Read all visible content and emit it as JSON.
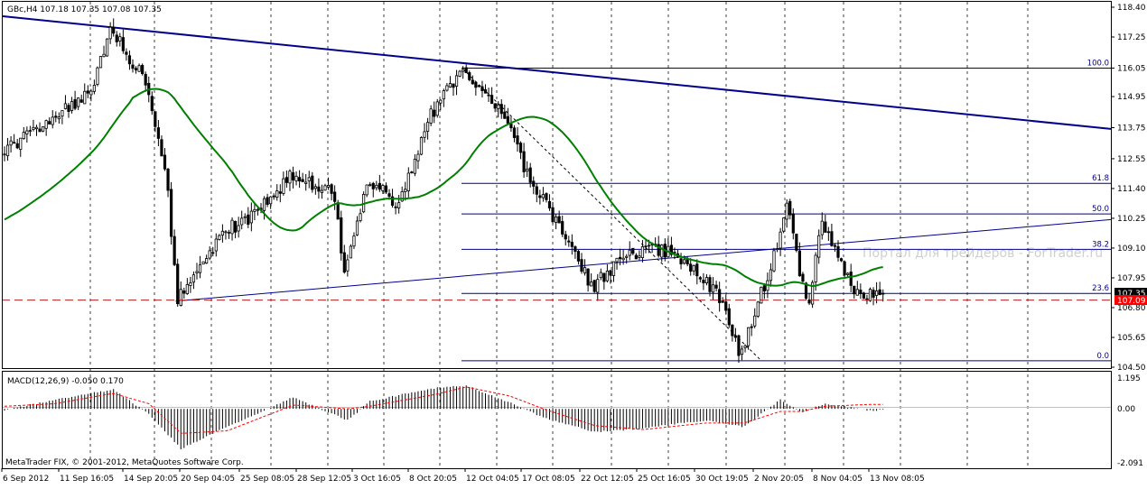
{
  "header": {
    "price_title": "GBc,H4  107.18 107.35 107.08 107.35",
    "macd_title": "MACD(12,26,9) -0.050 0.170",
    "copyright": "MetaTrader FIX, © 2001-2012, MetaQuotes Software Corp.",
    "watermark": "Портал для трейдеров - ForTrader.ru"
  },
  "colors": {
    "candle": "#000000",
    "ma": "#008000",
    "trend_line": "#00008b",
    "fibo": "#000080",
    "ask_line": "#b22222",
    "grid": "#000000",
    "macd_hist": "#000000",
    "macd_signal": "#ff0000",
    "price_label_bg": "#000000",
    "ask_label_bg": "#ff0000"
  },
  "chart_data": [
    {
      "type": "candlestick",
      "panel": "price",
      "ylim": [
        104.5,
        118.4
      ],
      "y_ticks": [
        "118.40",
        "117.25",
        "116.05",
        "114.95",
        "113.75",
        "112.55",
        "111.40",
        "110.25",
        "109.10",
        "107.95",
        "106.80",
        "105.65",
        "104.50"
      ],
      "x_ticks": [
        "6 Sep 2012",
        "11 Sep 16:05",
        "14 Sep 20:05",
        "20 Sep 04:05",
        "25 Sep 08:05",
        "28 Sep 12:05",
        "3 Oct 16:05",
        "8 Oct 20:05",
        "12 Oct 04:05",
        "17 Oct 08:05",
        "22 Oct 12:05",
        "25 Oct 16:05",
        "30 Oct 19:05",
        "2 Nov 20:05",
        "8 Nov 04:05",
        "13 Nov 08:05"
      ],
      "current_bid": "107.35",
      "current_ask": "107.09",
      "anchors": {
        "x": [
          "6 Sep",
          "9 Sep",
          "12 Sep",
          "13 Sep",
          "14 Sep",
          "17 Sep",
          "19 Sep",
          "20 Sep",
          "24 Sep",
          "26 Sep",
          "28 Sep",
          "2 Oct",
          "3 Oct",
          "5 Oct",
          "8 Oct",
          "10 Oct",
          "11 Oct",
          "12 Oct",
          "16 Oct",
          "18 Oct",
          "22 Oct",
          "23 Oct",
          "25 Oct",
          "29 Oct",
          "31 Oct",
          "1 Nov",
          "2 Nov",
          "5 Nov",
          "6 Nov",
          "7 Nov",
          "8 Nov",
          "9 Nov",
          "12 Nov",
          "13 Nov"
        ],
        "y": [
          112.8,
          113.5,
          114.6,
          115.0,
          117.6,
          115.5,
          111.5,
          107.1,
          109.8,
          110.3,
          111.9,
          111.3,
          108.0,
          111.7,
          110.8,
          114.2,
          115.2,
          116.0,
          114.0,
          111.8,
          109.0,
          107.6,
          108.9,
          109.0,
          107.9,
          107.1,
          104.9,
          109.2,
          111.2,
          108.0,
          107.0,
          110.2,
          107.5,
          107.35
        ]
      },
      "fibonacci_levels": [
        {
          "label": "100.0",
          "value": 116.05
        },
        {
          "label": "61.8",
          "value": 111.6
        },
        {
          "label": "50.0",
          "value": 110.42
        },
        {
          "label": "38.2",
          "value": 109.05
        },
        {
          "label": "23.6",
          "value": 107.35
        },
        {
          "label": "0.0",
          "value": 104.75
        }
      ]
    },
    {
      "type": "bar",
      "panel": "macd",
      "title": "MACD(12,26,9)",
      "ylim": [
        -2.091,
        1.195
      ],
      "y_ticks": [
        "1.195",
        "0.00",
        "-2.091"
      ],
      "anchors": {
        "x": [
          "6 Sep",
          "11 Sep",
          "14 Sep",
          "17 Sep",
          "20 Sep",
          "24 Sep",
          "28 Sep",
          "3 Oct",
          "5 Oct",
          "10 Oct",
          "12 Oct",
          "16 Oct",
          "19 Oct",
          "23 Oct",
          "26 Oct",
          "31 Oct",
          "2 Nov",
          "5 Nov",
          "7 Nov",
          "9 Nov",
          "13 Nov"
        ],
        "histogram": [
          -0.05,
          0.35,
          0.75,
          -0.2,
          -1.55,
          -0.7,
          0.45,
          -0.45,
          0.3,
          0.8,
          0.9,
          0.25,
          -0.35,
          -0.9,
          -0.75,
          -0.45,
          -0.7,
          0.35,
          -0.15,
          0.2,
          -0.05
        ],
        "signal": [
          0.1,
          0.2,
          0.6,
          0.2,
          -0.95,
          -0.85,
          0.15,
          0.0,
          0.1,
          0.55,
          0.85,
          0.5,
          0.0,
          -0.65,
          -0.8,
          -0.55,
          -0.55,
          -0.1,
          -0.1,
          0.1,
          0.17
        ]
      }
    }
  ]
}
